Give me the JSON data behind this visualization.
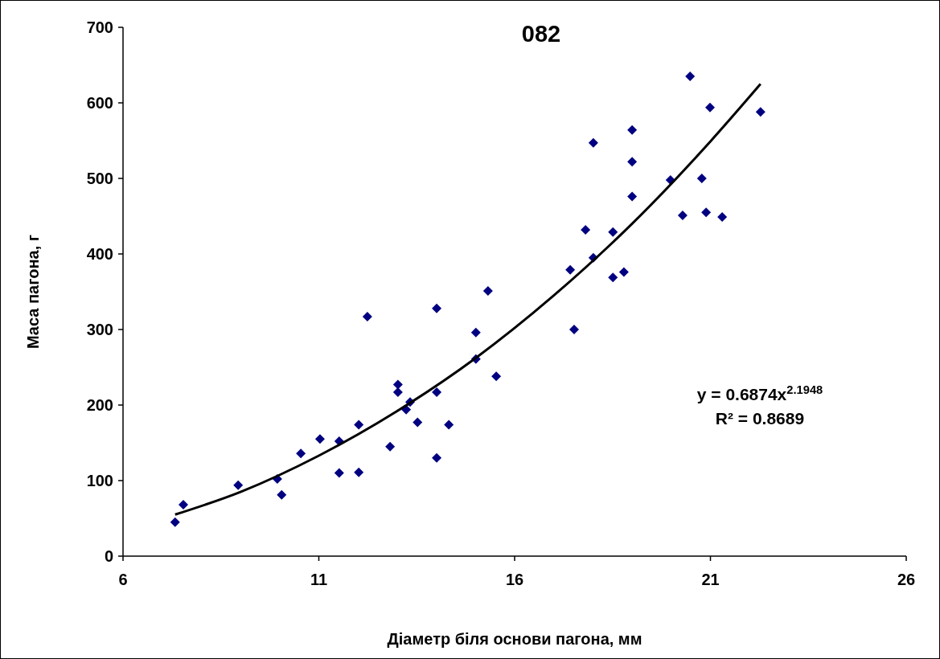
{
  "chart_data": {
    "type": "scatter",
    "title": "082",
    "xlabel": "Діаметр біля основи пагона, мм",
    "ylabel": "Маса пагона, г",
    "xlim": [
      6,
      26
    ],
    "xticks": [
      6,
      11,
      16,
      21,
      26
    ],
    "ylim": [
      0,
      700
    ],
    "yticks": [
      0,
      100,
      200,
      300,
      400,
      500,
      600,
      700
    ],
    "marker": "diamond",
    "grid": false,
    "annotations": [
      "y = 0.6874x$^{2.1948}$",
      "R² = 0.8689"
    ],
    "series": [
      {
        "color": "#000080",
        "x": [
          7.33,
          7.54,
          8.94,
          9.94,
          10.05,
          10.54,
          11.03,
          11.52,
          11.52,
          12.02,
          12.02,
          12.24,
          12.82,
          13.02,
          13.02,
          13.23,
          13.33,
          13.52,
          14.01,
          14.01,
          14.01,
          14.32,
          15.01,
          15.01,
          15.32,
          15.53,
          17.42,
          17.52,
          17.81,
          18.01,
          18.01,
          18.51,
          18.51,
          18.79,
          19.0,
          19.0,
          19.0,
          19.98,
          20.29,
          20.48,
          20.78,
          20.89,
          20.99,
          21.3,
          22.28
        ],
        "values": [
          45,
          68,
          94,
          102,
          81,
          136,
          155,
          152,
          110,
          174,
          111,
          317,
          145,
          227,
          217,
          194,
          204,
          177,
          328,
          217,
          130,
          174,
          296,
          261,
          351,
          238,
          379,
          300,
          432,
          547,
          395,
          429,
          369,
          376,
          564,
          522,
          476,
          498,
          451,
          635,
          500,
          455,
          594,
          449,
          588
        ]
      },
      {
        "type": "line",
        "color": "#000000",
        "marker": "none",
        "x": [
          7.33,
          9,
          11,
          13,
          15,
          17,
          19,
          21,
          22.28
        ],
        "values": [
          55,
          85,
          133,
          192,
          262,
          345,
          440,
          549,
          625
        ]
      }
    ]
  }
}
